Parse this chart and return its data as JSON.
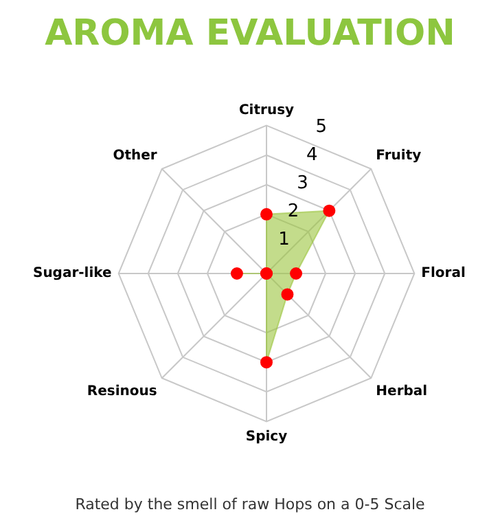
{
  "chart_data": {
    "type": "radar",
    "title": "AROMA EVALUATION",
    "categories": [
      "Citrusy",
      "Fruity",
      "Floral",
      "Herbal",
      "Spicy",
      "Resinous",
      "Sugar-like",
      "Other"
    ],
    "series": [
      {
        "color": "#9bc53d",
        "values": [
          2,
          3,
          1,
          1,
          3,
          0,
          1,
          0
        ]
      }
    ],
    "ylim": [
      0,
      5
    ],
    "yticks": [
      1,
      2,
      3,
      4,
      5
    ],
    "grid": true,
    "legend": false,
    "marker": "circle",
    "annotations": [
      "Rated by the smell of raw Hops on a 0-5 Scale"
    ]
  }
}
